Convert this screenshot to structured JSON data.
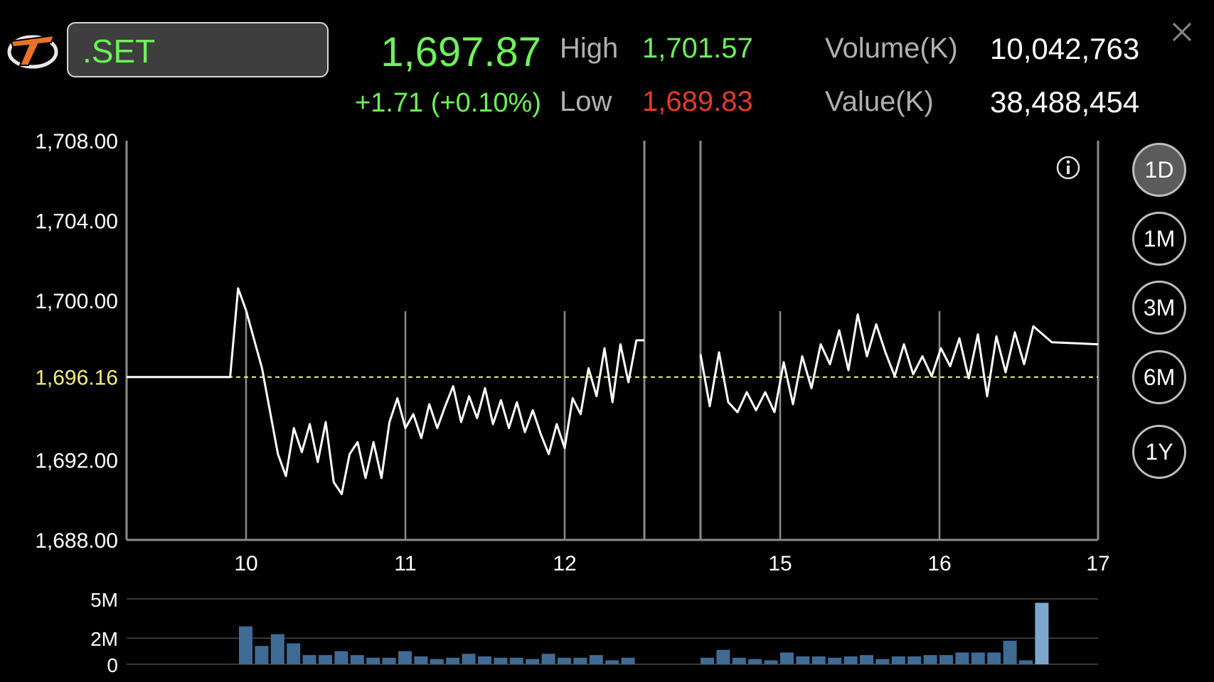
{
  "header": {
    "symbol": ".SET",
    "last_price": "1,697.87",
    "change": "+1.71 (+0.10%)",
    "high_label": "High",
    "high_value": "1,701.57",
    "low_label": "Low",
    "low_value": "1,689.83",
    "volume_label": "Volume(K)",
    "volume_value": "10,042,763",
    "value_label": "Value(K)",
    "value_value": "38,488,454"
  },
  "range_buttons": [
    {
      "label": "1D",
      "active": true
    },
    {
      "label": "1M",
      "active": false
    },
    {
      "label": "3M",
      "active": false
    },
    {
      "label": "6M",
      "active": false
    },
    {
      "label": "1Y",
      "active": false
    }
  ],
  "colors": {
    "up": "#6ef25a",
    "down": "#e23c2c",
    "reference": "#f5f07a",
    "price_line": "#ffffff",
    "volume_bar": "#3f6b95",
    "volume_bar_highlight": "#7da6cc"
  },
  "icons": {
    "logo": "broker-logo-icon",
    "close": "close-icon",
    "info": "info-icon"
  },
  "chart_data": [
    {
      "type": "line",
      "ytick_labels": [
        "1,708.00",
        "1,704.00",
        "1,700.00",
        "1,696.16",
        "1,692.00",
        "1,688.00"
      ],
      "yticks": [
        1708,
        1704,
        1700,
        1696.16,
        1692,
        1688
      ],
      "ylim": [
        1688,
        1708
      ],
      "xticks": [
        {
          "label": "10",
          "x": 10
        },
        {
          "label": "11",
          "x": 11
        },
        {
          "label": "12",
          "x": 12
        },
        {
          "label": "15",
          "x": 15
        },
        {
          "label": "16",
          "x": 16
        },
        {
          "label": "17",
          "x": 17
        }
      ],
      "xlim": [
        9.25,
        17
      ],
      "session_breaks": [
        12.5,
        14.85
      ],
      "reference_line": 1696.16,
      "series": [
        {
          "x": [
            9.25,
            9.9,
            9.95,
            10.0,
            10.1,
            10.2,
            10.25,
            10.3,
            10.35,
            10.4,
            10.45,
            10.5,
            10.55,
            10.6,
            10.65,
            10.7,
            10.75,
            10.8,
            10.85,
            10.9,
            10.95,
            11.0,
            11.05,
            11.1,
            11.15,
            11.2,
            11.25,
            11.3,
            11.35,
            11.4,
            11.45,
            11.5,
            11.55,
            11.6,
            11.65,
            11.7,
            11.75,
            11.8,
            11.85,
            11.9,
            11.95,
            12.0,
            12.05,
            12.1,
            12.15,
            12.2,
            12.25,
            12.3,
            12.35,
            12.4,
            12.45,
            12.5
          ],
          "values": [
            1696.16,
            1696.16,
            1700.6,
            1699.5,
            1696.6,
            1692.3,
            1691.2,
            1693.6,
            1692.4,
            1693.8,
            1691.9,
            1693.9,
            1690.9,
            1690.3,
            1692.3,
            1692.9,
            1691.1,
            1692.9,
            1691.1,
            1693.9,
            1695.1,
            1693.6,
            1694.3,
            1693.1,
            1694.8,
            1693.6,
            1694.7,
            1695.7,
            1693.9,
            1695.2,
            1694.1,
            1695.6,
            1693.8,
            1695.0,
            1693.6,
            1694.9,
            1693.4,
            1694.5,
            1693.3,
            1692.3,
            1693.8,
            1692.6,
            1695.1,
            1694.3,
            1696.6,
            1695.2,
            1697.6,
            1694.9,
            1697.8,
            1695.9,
            1698.0,
            1698.0
          ]
        },
        {
          "x": [
            14.85,
            14.9,
            14.95,
            15.0,
            15.05,
            15.1,
            15.15,
            15.2,
            15.25,
            15.3,
            15.35,
            15.4,
            15.45,
            15.5,
            15.55,
            15.6,
            15.65,
            15.7,
            15.75,
            15.8,
            15.85,
            15.9,
            15.95,
            16.0,
            16.05,
            16.1,
            16.15,
            16.2,
            16.25,
            16.3,
            16.35,
            16.4,
            16.45,
            16.5,
            16.55,
            16.6,
            16.65,
            16.75,
            17.0
          ],
          "values": [
            1697.3,
            1694.7,
            1697.4,
            1694.9,
            1694.4,
            1695.4,
            1694.5,
            1695.4,
            1694.4,
            1696.9,
            1694.8,
            1697.2,
            1695.6,
            1697.8,
            1696.8,
            1698.5,
            1696.5,
            1699.3,
            1697.2,
            1698.8,
            1697.4,
            1696.2,
            1697.8,
            1696.3,
            1697.2,
            1696.2,
            1697.6,
            1696.7,
            1698.1,
            1696.1,
            1698.3,
            1695.2,
            1698.2,
            1696.4,
            1698.4,
            1696.8,
            1698.7,
            1697.9,
            1697.8
          ]
        }
      ]
    },
    {
      "type": "bar",
      "ytick_labels": [
        "5M",
        "2M",
        "0"
      ],
      "yticks": [
        5,
        2,
        0
      ],
      "ylim": [
        0,
        5
      ],
      "y_unit": "M",
      "x": [
        10.0,
        10.1,
        10.2,
        10.3,
        10.4,
        10.5,
        10.6,
        10.7,
        10.8,
        10.9,
        11.0,
        11.1,
        11.2,
        11.3,
        11.4,
        11.5,
        11.6,
        11.7,
        11.8,
        11.9,
        12.0,
        12.1,
        12.2,
        12.3,
        12.4,
        15.0,
        15.1,
        15.2,
        15.3,
        15.4,
        15.5,
        15.6,
        15.7,
        15.8,
        15.9,
        16.0,
        16.1,
        16.2,
        16.3,
        16.4,
        16.5,
        16.6,
        16.7,
        16.8,
        16.9,
        17.0,
        17.1,
        17.2,
        17.3,
        17.4,
        17.5
      ],
      "values": [
        2.9,
        1.4,
        2.3,
        1.6,
        0.7,
        0.7,
        1.0,
        0.7,
        0.5,
        0.5,
        1.0,
        0.6,
        0.4,
        0.5,
        0.8,
        0.6,
        0.5,
        0.5,
        0.4,
        0.8,
        0.5,
        0.5,
        0.7,
        0.3,
        0.5,
        0.5,
        1.1,
        0.5,
        0.4,
        0.3,
        0.9,
        0.6,
        0.6,
        0.5,
        0.6,
        0.7,
        0.4,
        0.6,
        0.6,
        0.7,
        0.7,
        0.9,
        0.9,
        0.9,
        1.8,
        0.3,
        4.7,
        0,
        0,
        0,
        0
      ]
    }
  ]
}
